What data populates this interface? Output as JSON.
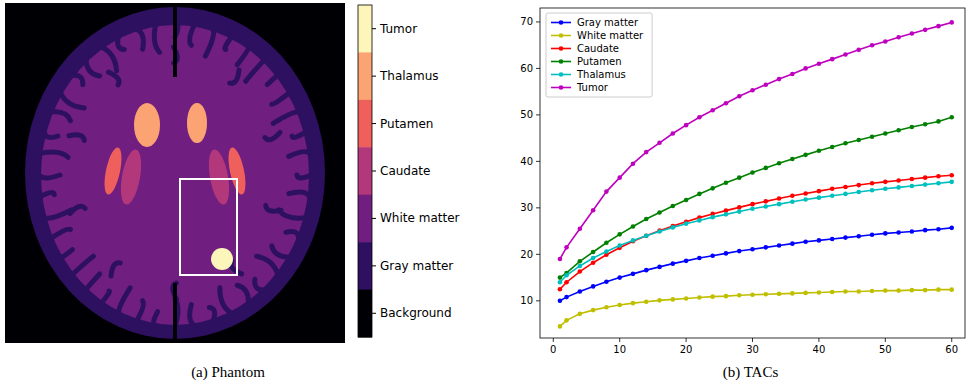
{
  "chart_data": [
    {
      "type": "image",
      "title": "(a) Phantom",
      "categories": [
        "Tumor",
        "Thalamus",
        "Putamen",
        "Caudate",
        "White matter",
        "Gray matter",
        "Background"
      ],
      "colors": [
        "#fcf6ba",
        "#fba373",
        "#ef605d",
        "#b3377b",
        "#701f81",
        "#2d1160",
        "#000004"
      ]
    },
    {
      "type": "line",
      "title": "(b) TACs",
      "x": [
        1,
        2,
        4,
        6,
        8,
        10,
        12,
        14,
        16,
        18,
        20,
        22,
        24,
        26,
        28,
        30,
        32,
        34,
        36,
        38,
        40,
        42,
        44,
        46,
        48,
        50,
        52,
        54,
        56,
        58,
        60
      ],
      "series": [
        {
          "name": "Gray matter",
          "color": "#0000ff",
          "values": [
            10,
            10.8,
            12,
            13.1,
            14.1,
            15,
            15.8,
            16.6,
            17.3,
            18,
            18.6,
            19.2,
            19.7,
            20.2,
            20.7,
            21.1,
            21.5,
            21.9,
            22.3,
            22.7,
            23,
            23.3,
            23.6,
            23.9,
            24.2,
            24.5,
            24.7,
            24.9,
            25.2,
            25.4,
            25.7
          ]
        },
        {
          "name": "White matter",
          "color": "#bfbf00",
          "values": [
            4.5,
            5.8,
            7.2,
            8,
            8.6,
            9.1,
            9.5,
            9.8,
            10.1,
            10.3,
            10.5,
            10.7,
            10.9,
            11,
            11.2,
            11.3,
            11.4,
            11.5,
            11.6,
            11.7,
            11.8,
            11.9,
            12,
            12,
            12.1,
            12.2,
            12.2,
            12.3,
            12.3,
            12.4,
            12.4
          ]
        },
        {
          "name": "Caudate",
          "color": "#ff0000",
          "values": [
            12.5,
            14,
            16.3,
            18.2,
            19.9,
            21.4,
            22.8,
            24,
            25.1,
            26.1,
            27,
            27.9,
            28.7,
            29.4,
            30.1,
            30.8,
            31.4,
            32,
            32.6,
            33.1,
            33.6,
            34.1,
            34.5,
            34.9,
            35.3,
            35.6,
            35.9,
            36.2,
            36.5,
            36.8,
            37
          ]
        },
        {
          "name": "Putamen",
          "color": "#008000",
          "values": [
            15,
            16,
            18.5,
            20.5,
            22.5,
            24.3,
            26,
            27.6,
            29,
            30.4,
            31.7,
            33,
            34.2,
            35.4,
            36.5,
            37.6,
            38.6,
            39.6,
            40.5,
            41.4,
            42.3,
            43.1,
            43.9,
            44.6,
            45.3,
            46,
            46.7,
            47.4,
            48,
            48.6,
            49.5
          ]
        },
        {
          "name": "Thalamus",
          "color": "#00bfbf",
          "values": [
            14,
            15.5,
            17.5,
            19.2,
            20.6,
            21.9,
            23,
            24,
            24.9,
            25.8,
            26.6,
            27.3,
            28,
            28.6,
            29.2,
            29.8,
            30.3,
            30.8,
            31.3,
            31.8,
            32.2,
            32.6,
            33,
            33.4,
            33.8,
            34.1,
            34.4,
            34.7,
            35,
            35.3,
            35.6
          ]
        },
        {
          "name": "Tumor",
          "color": "#bf00bf",
          "values": [
            19,
            21.5,
            25.5,
            29.5,
            33.5,
            36.5,
            39.5,
            42,
            44,
            46,
            47.8,
            49.5,
            51,
            52.5,
            54,
            55.3,
            56.5,
            57.7,
            58.8,
            60,
            61,
            62,
            63,
            64,
            65,
            65.8,
            66.7,
            67.5,
            68.3,
            69.1,
            69.9
          ]
        }
      ],
      "xlim": [
        -2,
        62
      ],
      "xticks": [
        0,
        10,
        20,
        30,
        40,
        50,
        60
      ],
      "ylim": [
        2,
        73
      ],
      "yticks": [
        10,
        20,
        30,
        40,
        50,
        60,
        70
      ],
      "legend": "upper left",
      "marker": "circle",
      "grid": false
    }
  ]
}
